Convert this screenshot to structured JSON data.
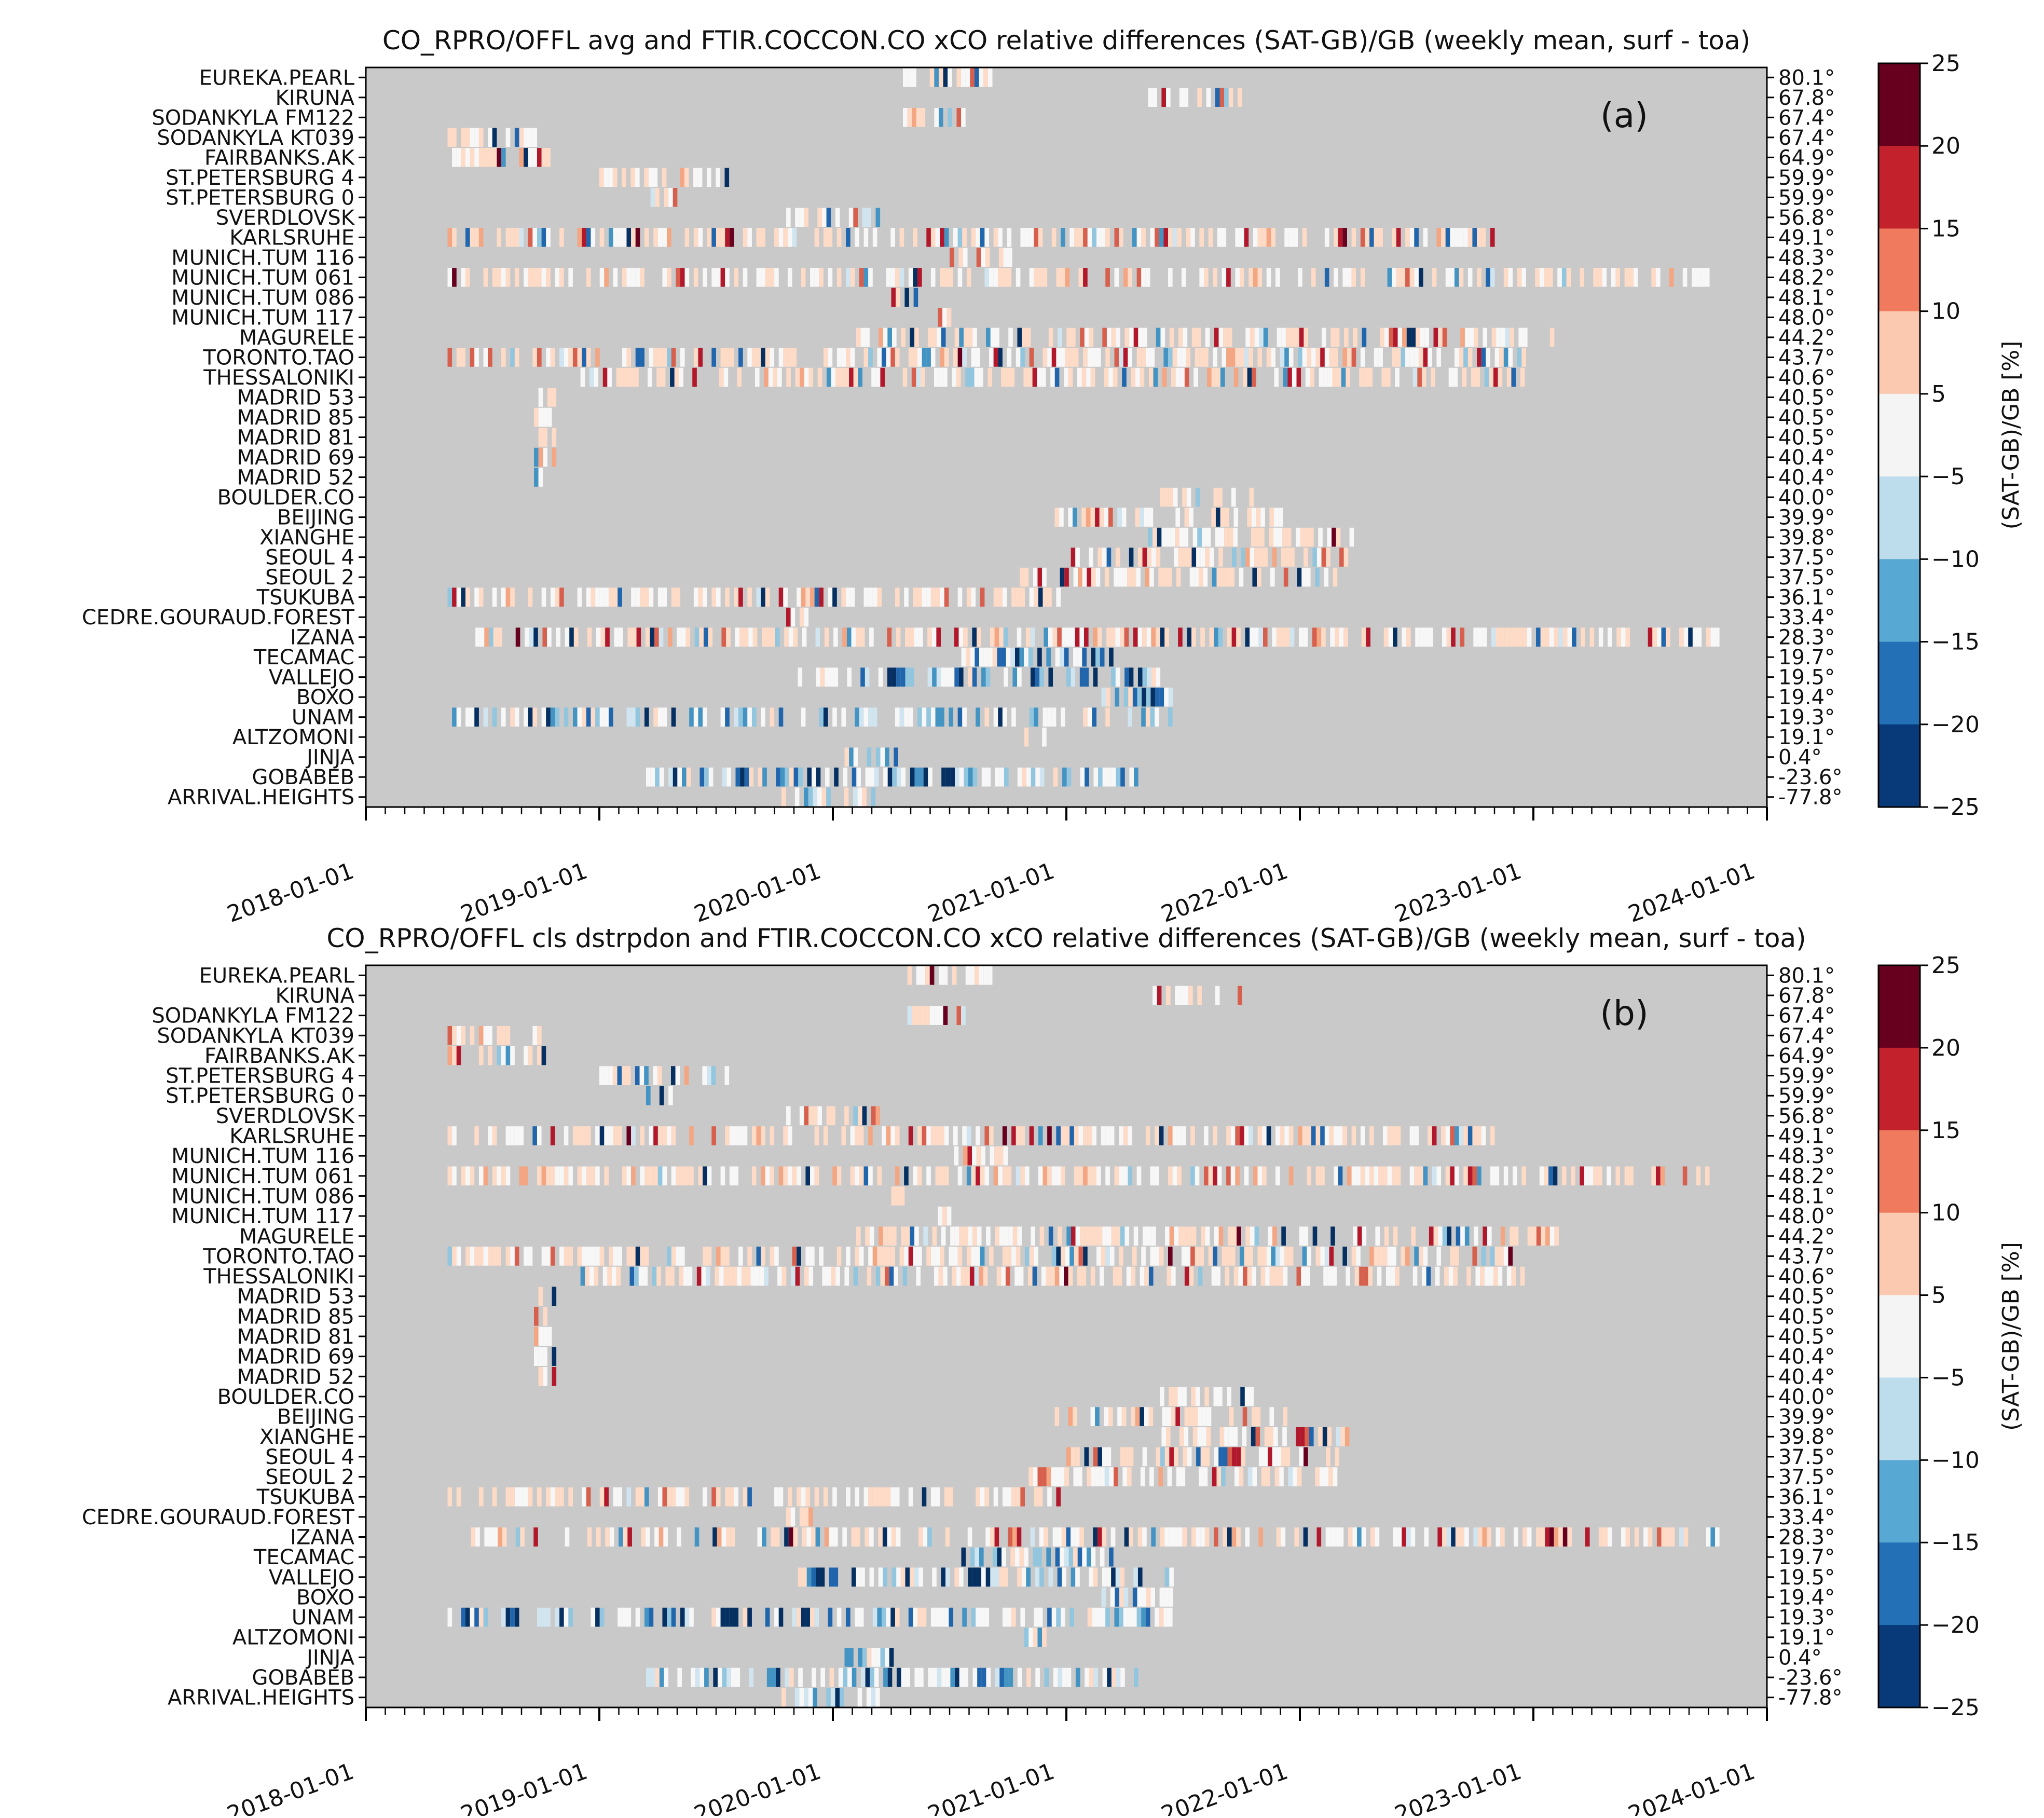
{
  "chart_data": [
    {
      "type": "heatmap",
      "panel_label": "(a)",
      "title": "CO_RPRO/OFFL avg and FTIR.COCCON.CO xCO relative differences (SAT-GB)/GB (weekly mean, surf - toa)",
      "xlabel": "",
      "ylabel": "",
      "x_tick_labels": [
        "2018-01-01",
        "2019-01-01",
        "2020-01-01",
        "2021-01-01",
        "2022-01-01",
        "2023-01-01",
        "2024-01-01"
      ],
      "xlim": [
        2018.0,
        2024.0
      ],
      "stations": [
        "EUREKA.PEARL",
        "KIRUNA",
        "SODANKYLA FM122",
        "SODANKYLA KT039",
        "FAIRBANKS.AK",
        "ST.PETERSBURG 4",
        "ST.PETERSBURG 0",
        "SVERDLOVSK",
        "KARLSRUHE",
        "MUNICH.TUM 116",
        "MUNICH.TUM 061",
        "MUNICH.TUM 086",
        "MUNICH.TUM 117",
        "MAGURELE",
        "TORONTO.TAO",
        "THESSALONIKI",
        "MADRID 53",
        "MADRID 85",
        "MADRID 81",
        "MADRID 69",
        "MADRID 52",
        "BOULDER.CO",
        "BEIJING",
        "XIANGHE",
        "SEOUL 4",
        "SEOUL 2",
        "TSUKUBA",
        "CEDRE.GOURAUD.FOREST",
        "IZANA",
        "TECAMAC",
        "VALLEJO",
        "BOXO",
        "UNAM",
        "ALTZOMONI",
        "JINJA",
        "GOBABEB",
        "ARRIVAL.HEIGHTS"
      ],
      "latitudes": [
        "80.1°",
        "67.8°",
        "67.4°",
        "67.4°",
        "64.9°",
        "59.9°",
        "59.9°",
        "56.8°",
        "49.1°",
        "48.3°",
        "48.2°",
        "48.1°",
        "48.0°",
        "44.2°",
        "43.7°",
        "40.6°",
        "40.5°",
        "40.5°",
        "40.5°",
        "40.4°",
        "40.4°",
        "40.0°",
        "39.9°",
        "39.8°",
        "37.5°",
        "37.5°",
        "36.1°",
        "33.4°",
        "28.3°",
        "19.7°",
        "19.5°",
        "19.4°",
        "19.3°",
        "19.1°",
        "0.4°",
        "-23.6°",
        "-77.8°"
      ],
      "station_ranges": [
        [
          2020.3,
          2020.7
        ],
        [
          2021.35,
          2021.75
        ],
        [
          2020.3,
          2020.55
        ],
        [
          2018.35,
          2018.75
        ],
        [
          2018.35,
          2018.78
        ],
        [
          2019.0,
          2019.55
        ],
        [
          2019.2,
          2019.32
        ],
        [
          2019.8,
          2020.2
        ],
        [
          2018.35,
          2022.85
        ],
        [
          2020.5,
          2020.75
        ],
        [
          2018.35,
          2023.75
        ],
        [
          2020.25,
          2020.35
        ],
        [
          2020.45,
          2020.5
        ],
        [
          2020.1,
          2023.1
        ],
        [
          2018.35,
          2022.95
        ],
        [
          2018.9,
          2022.95
        ],
        [
          2018.72,
          2018.8
        ],
        [
          2018.72,
          2018.8
        ],
        [
          2018.72,
          2018.8
        ],
        [
          2018.72,
          2018.8
        ],
        [
          2018.72,
          2018.8
        ],
        [
          2021.4,
          2021.8
        ],
        [
          2020.95,
          2021.95
        ],
        [
          2021.35,
          2022.25
        ],
        [
          2021.0,
          2022.2
        ],
        [
          2020.8,
          2022.15
        ],
        [
          2018.35,
          2021.0
        ],
        [
          2019.8,
          2019.9
        ],
        [
          2018.45,
          2023.85
        ],
        [
          2020.55,
          2021.2
        ],
        [
          2019.85,
          2021.45
        ],
        [
          2021.15,
          2021.45
        ],
        [
          2018.35,
          2021.45
        ],
        [
          2020.8,
          2020.9
        ],
        [
          2020.05,
          2020.28
        ],
        [
          2019.2,
          2021.3
        ],
        [
          2019.78,
          2020.2
        ]
      ],
      "colorbar": {
        "label": "(SAT-GB)/GB [%]",
        "ticks": [
          "25",
          "20",
          "15",
          "10",
          "5",
          "−5",
          "−10",
          "−15",
          "−20",
          "−25"
        ],
        "colors": [
          "#67001f",
          "#b2182b",
          "#d6604d",
          "#f4a582",
          "#fddbc7",
          "#f7f7f7",
          "#d1e5f0",
          "#92c5de",
          "#4393c3",
          "#2166ac",
          "#053061"
        ]
      }
    },
    {
      "type": "heatmap",
      "panel_label": "(b)",
      "title": "CO_RPRO/OFFL cls dstrpdon and FTIR.COCCON.CO xCO relative differences (SAT-GB)/GB (weekly mean, surf - toa)",
      "xlabel": "",
      "ylabel": "",
      "x_tick_labels": [
        "2018-01-01",
        "2019-01-01",
        "2020-01-01",
        "2021-01-01",
        "2022-01-01",
        "2023-01-01",
        "2024-01-01"
      ],
      "xlim": [
        2018.0,
        2024.0
      ],
      "stations": [
        "EUREKA.PEARL",
        "KIRUNA",
        "SODANKYLA FM122",
        "SODANKYLA KT039",
        "FAIRBANKS.AK",
        "ST.PETERSBURG 4",
        "ST.PETERSBURG 0",
        "SVERDLOVSK",
        "KARLSRUHE",
        "MUNICH.TUM 116",
        "MUNICH.TUM 061",
        "MUNICH.TUM 086",
        "MUNICH.TUM 117",
        "MAGURELE",
        "TORONTO.TAO",
        "THESSALONIKI",
        "MADRID 53",
        "MADRID 85",
        "MADRID 81",
        "MADRID 69",
        "MADRID 52",
        "BOULDER.CO",
        "BEIJING",
        "XIANGHE",
        "SEOUL 4",
        "SEOUL 2",
        "TSUKUBA",
        "CEDRE.GOURAUD.FOREST",
        "IZANA",
        "TECAMAC",
        "VALLEJO",
        "BOXO",
        "UNAM",
        "ALTZOMONI",
        "JINJA",
        "GOBABEB",
        "ARRIVAL.HEIGHTS"
      ],
      "latitudes": [
        "80.1°",
        "67.8°",
        "67.4°",
        "67.4°",
        "64.9°",
        "59.9°",
        "59.9°",
        "56.8°",
        "49.1°",
        "48.3°",
        "48.2°",
        "48.1°",
        "48.0°",
        "44.2°",
        "43.7°",
        "40.6°",
        "40.5°",
        "40.5°",
        "40.5°",
        "40.4°",
        "40.4°",
        "40.0°",
        "39.9°",
        "39.8°",
        "37.5°",
        "37.5°",
        "36.1°",
        "33.4°",
        "28.3°",
        "19.7°",
        "19.5°",
        "19.4°",
        "19.3°",
        "19.1°",
        "0.4°",
        "-23.6°",
        "-77.8°"
      ],
      "station_ranges": [
        [
          2020.3,
          2020.7
        ],
        [
          2021.35,
          2021.75
        ],
        [
          2020.3,
          2020.55
        ],
        [
          2018.35,
          2018.75
        ],
        [
          2018.35,
          2018.78
        ],
        [
          2019.0,
          2019.55
        ],
        [
          2019.2,
          2019.32
        ],
        [
          2019.8,
          2020.2
        ],
        [
          2018.35,
          2022.85
        ],
        [
          2020.5,
          2020.75
        ],
        [
          2018.35,
          2023.75
        ],
        [
          2020.25,
          2020.35
        ],
        [
          2020.45,
          2020.5
        ],
        [
          2020.1,
          2023.1
        ],
        [
          2018.35,
          2022.95
        ],
        [
          2018.9,
          2022.95
        ],
        [
          2018.72,
          2018.8
        ],
        [
          2018.72,
          2018.8
        ],
        [
          2018.72,
          2018.8
        ],
        [
          2018.72,
          2018.8
        ],
        [
          2018.72,
          2018.8
        ],
        [
          2021.4,
          2021.8
        ],
        [
          2020.95,
          2021.95
        ],
        [
          2021.35,
          2022.25
        ],
        [
          2021.0,
          2022.2
        ],
        [
          2020.8,
          2022.15
        ],
        [
          2018.35,
          2021.0
        ],
        [
          2019.8,
          2019.9
        ],
        [
          2018.45,
          2023.85
        ],
        [
          2020.55,
          2021.2
        ],
        [
          2019.85,
          2021.45
        ],
        [
          2021.15,
          2021.45
        ],
        [
          2018.35,
          2021.45
        ],
        [
          2020.8,
          2020.9
        ],
        [
          2020.05,
          2020.28
        ],
        [
          2019.2,
          2021.3
        ],
        [
          2019.78,
          2020.2
        ]
      ],
      "colorbar": {
        "label": "(SAT-GB)/GB [%]",
        "ticks": [
          "25",
          "20",
          "15",
          "10",
          "5",
          "−5",
          "−10",
          "−15",
          "−20",
          "−25"
        ],
        "colors": [
          "#67001f",
          "#b2182b",
          "#d6604d",
          "#f4a582",
          "#fddbc7",
          "#f7f7f7",
          "#d1e5f0",
          "#92c5de",
          "#4393c3",
          "#2166ac",
          "#053061"
        ]
      }
    }
  ]
}
